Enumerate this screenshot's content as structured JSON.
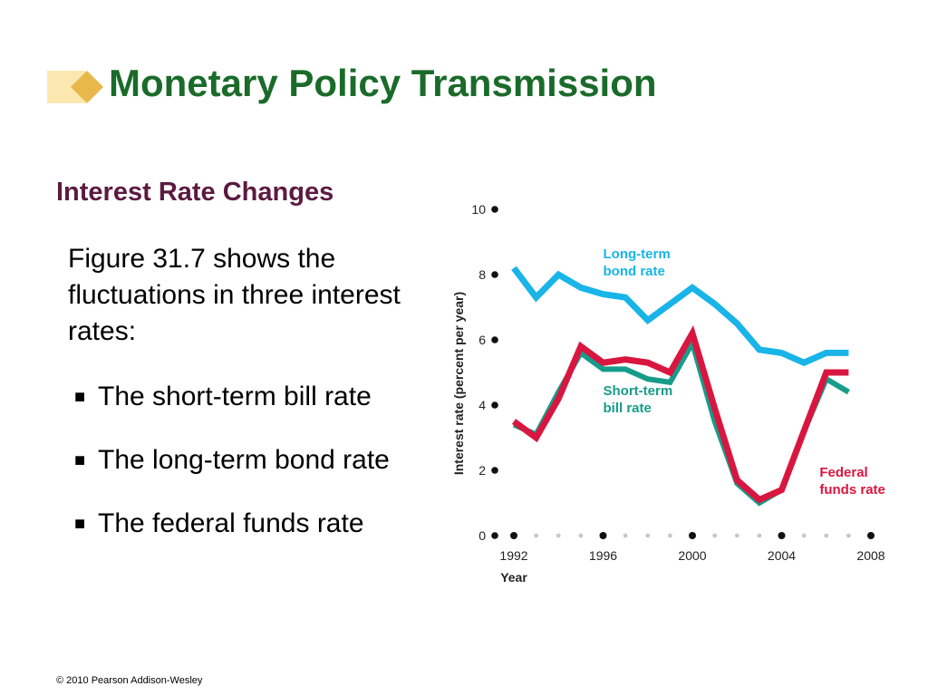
{
  "slide": {
    "title": "Monetary Policy Transmission",
    "subtitle": "Interest Rate Changes",
    "intro": "Figure 31.7 shows the fluctuations in three interest rates:",
    "bullets": [
      "The short-term bill rate",
      "The long-term bond rate",
      "The federal funds rate"
    ],
    "bullet_glyph": "■",
    "footer": "© 2010 Pearson Addison-Wesley"
  },
  "colors": {
    "title": "#1a6b2a",
    "subtitle": "#5c1a40",
    "long_term": "#19b4e8",
    "short_term": "#169c8a",
    "federal_funds": "#d9163f"
  },
  "chart_data": {
    "type": "line",
    "ylabel": "Interest rate (percent per year)",
    "xlabel": "Year",
    "ylim": [
      0,
      10
    ],
    "xlim": [
      1992,
      2008
    ],
    "y_ticks": [
      0,
      2,
      4,
      6,
      8,
      10
    ],
    "x_ticks": [
      1992,
      1996,
      2000,
      2004,
      2008
    ],
    "x": [
      1992,
      1993,
      1994,
      1995,
      1996,
      1997,
      1998,
      1999,
      2000,
      2001,
      2002,
      2003,
      2004,
      2005,
      2006,
      2007
    ],
    "series": [
      {
        "name": "Long-term bond rate",
        "label_lines": [
          "Long-term",
          "bond rate"
        ],
        "color": "#19b4e8",
        "values": [
          8.2,
          7.3,
          8.0,
          7.6,
          7.4,
          7.3,
          6.6,
          7.1,
          7.6,
          7.1,
          6.5,
          5.7,
          5.6,
          5.3,
          5.6,
          5.6
        ]
      },
      {
        "name": "Short-term bill rate",
        "label_lines": [
          "Short-term",
          "bill rate"
        ],
        "color": "#169c8a",
        "values": [
          3.4,
          3.1,
          4.4,
          5.6,
          5.1,
          5.1,
          4.8,
          4.7,
          5.9,
          3.5,
          1.6,
          1.0,
          1.4,
          3.2,
          4.8,
          4.4
        ]
      },
      {
        "name": "Federal funds rate",
        "label_lines": [
          "Federal",
          "funds rate"
        ],
        "color": "#d9163f",
        "values": [
          3.5,
          3.0,
          4.2,
          5.8,
          5.3,
          5.4,
          5.3,
          5.0,
          6.2,
          3.9,
          1.7,
          1.1,
          1.4,
          3.2,
          5.0,
          5.0
        ]
      }
    ]
  }
}
